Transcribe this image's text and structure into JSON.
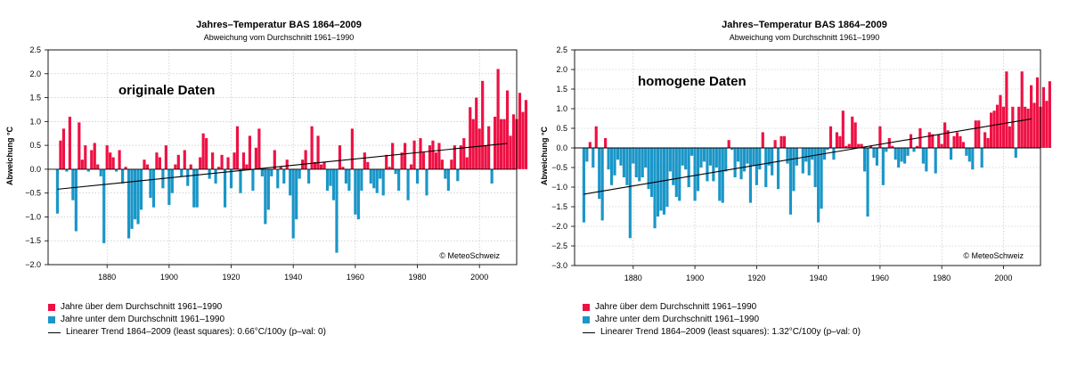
{
  "colors": {
    "above": "#ee1144",
    "below": "#1a96c8",
    "trend": "#000000",
    "grid": "#b8b8b8"
  },
  "chart_data": [
    {
      "type": "bar",
      "title": "Jahres–Temperatur BAS 1864–2009",
      "subtitle": "Abweichung vom Durchschnitt 1961–1990",
      "ylabel": "Abweichung °C",
      "xlabel": "",
      "annotation": "originale Daten",
      "credit": "© MeteoSchweiz",
      "xlim": [
        1861,
        2012
      ],
      "ylim": [
        -2.0,
        2.5
      ],
      "yticks": [
        2.5,
        2.0,
        1.5,
        1.0,
        0.5,
        0.0,
        -0.5,
        -1.0,
        -1.5,
        -2.0
      ],
      "ytick_labels": [
        "2.5",
        "2.0",
        "1.5",
        "1.0",
        "0.5",
        "0.0",
        "−0.5",
        "−1.0",
        "−1.5",
        "−2.0"
      ],
      "xticks": [
        1880,
        1900,
        1920,
        1940,
        1960,
        1980,
        2000
      ],
      "xtick_labels": [
        "1880",
        "1900",
        "1920",
        "1940",
        "1960",
        "1980",
        "2000"
      ],
      "first_year": 1864,
      "values": [
        -0.93,
        0.6,
        0.85,
        -0.05,
        1.1,
        -0.65,
        -1.3,
        0.98,
        0.2,
        0.5,
        -0.05,
        0.4,
        0.55,
        0.1,
        -0.15,
        -1.55,
        0.5,
        0.35,
        0.25,
        -0.05,
        0.4,
        -0.3,
        0.05,
        -1.45,
        -1.25,
        -1.05,
        -1.15,
        -0.85,
        0.2,
        0.1,
        -0.6,
        -0.8,
        0.35,
        0.25,
        -0.4,
        0.5,
        -0.75,
        -0.5,
        0.1,
        0.3,
        -0.15,
        0.4,
        -0.35,
        0.1,
        -0.8,
        -0.8,
        0.25,
        0.75,
        0.65,
        -0.2,
        0.35,
        -0.3,
        0.05,
        0.3,
        -0.8,
        0.25,
        -0.4,
        0.35,
        0.9,
        -0.5,
        0.35,
        0.1,
        0.7,
        -0.45,
        0.45,
        0.85,
        -0.15,
        -1.15,
        -0.85,
        -0.15,
        0.4,
        -0.4,
        0.05,
        -0.3,
        0.2,
        -0.55,
        -1.45,
        -1.05,
        -0.2,
        0.2,
        0.4,
        -0.3,
        0.9,
        0.15,
        0.7,
        0.1,
        0.15,
        -0.45,
        -0.35,
        -0.65,
        -1.75,
        0.5,
        0.05,
        -0.3,
        -0.45,
        0.85,
        -0.95,
        -1.05,
        -0.45,
        0.35,
        0.15,
        -0.3,
        -0.4,
        -0.5,
        -0.2,
        -0.55,
        0.3,
        0.05,
        0.55,
        -0.1,
        -0.45,
        0.35,
        0.55,
        -0.65,
        0.1,
        0.6,
        -0.3,
        0.65,
        0.35,
        -0.55,
        0.5,
        0.6,
        0.35,
        0.55,
        0.2,
        -0.2,
        -0.45,
        0.2,
        0.5,
        -0.25,
        0.5,
        0.65,
        0.25,
        1.3,
        1.05,
        1.5,
        0.85,
        1.85,
        0.5,
        0.9,
        -0.3,
        1.1,
        2.1,
        1.05,
        1.05,
        1.65,
        0.7,
        1.15,
        1.05,
        1.6,
        1.2,
        1.45
      ],
      "trend": {
        "x": [
          1864,
          2009
        ],
        "y": [
          -0.42,
          0.54
        ]
      },
      "legend": {
        "above": "Jahre über dem Durchschnitt 1961–1990",
        "below": "Jahre unter dem Durchschnitt 1961–1990",
        "trend": "Linearer Trend 1864–2009 (least squares): 0.66°C/100y (p–val: 0)"
      }
    },
    {
      "type": "bar",
      "title": "Jahres–Temperatur BAS 1864–2009",
      "subtitle": "Abweichung vom Durchschnitt 1961–1990",
      "ylabel": "Abweichung °C",
      "xlabel": "",
      "annotation": "homogene Daten",
      "credit": "© MeteoSchweiz",
      "xlim": [
        1861,
        2012
      ],
      "ylim": [
        -3.0,
        2.5
      ],
      "yticks": [
        2.5,
        2.0,
        1.5,
        1.0,
        0.5,
        0.0,
        -0.5,
        -1.0,
        -1.5,
        -2.0,
        -2.5,
        -3.0
      ],
      "ytick_labels": [
        "2.5",
        "2.0",
        "1.5",
        "1.0",
        "0.5",
        "0.0",
        "−0.5",
        "−1.0",
        "−1.5",
        "−2.0",
        "−2.5",
        "−3.0"
      ],
      "xticks": [
        1880,
        1900,
        1920,
        1940,
        1960,
        1980,
        2000
      ],
      "xtick_labels": [
        "1880",
        "1900",
        "1920",
        "1940",
        "1960",
        "1980",
        "2000"
      ],
      "first_year": 1864,
      "values": [
        -1.9,
        -0.35,
        0.15,
        -0.5,
        0.55,
        -1.3,
        -1.85,
        0.25,
        -0.55,
        -0.95,
        -0.7,
        -0.3,
        -0.45,
        -0.75,
        -0.95,
        -2.3,
        -0.4,
        -0.75,
        -0.85,
        -0.75,
        -0.5,
        -1.05,
        -1.25,
        -2.05,
        -1.75,
        -1.6,
        -1.7,
        -1.5,
        -0.6,
        -0.95,
        -1.25,
        -1.35,
        -0.45,
        -0.55,
        -1.0,
        -0.2,
        -1.35,
        -1.1,
        -0.5,
        -0.35,
        -0.85,
        -0.45,
        -0.85,
        -0.5,
        -1.35,
        -1.4,
        -0.6,
        0.2,
        -0.05,
        -0.75,
        -0.35,
        -0.8,
        -0.6,
        -0.4,
        -1.4,
        -0.45,
        -0.95,
        -0.55,
        0.4,
        -1.0,
        -0.45,
        -0.7,
        0.2,
        -1.05,
        0.3,
        0.3,
        -0.4,
        -1.7,
        -1.1,
        -0.45,
        0.0,
        -0.65,
        -0.35,
        -0.7,
        -0.3,
        -1.0,
        -1.9,
        -1.55,
        -0.3,
        -0.05,
        0.55,
        -0.3,
        0.4,
        0.3,
        0.95,
        0.05,
        0.1,
        0.8,
        0.65,
        0.1,
        0.1,
        -0.6,
        -1.75,
        0.05,
        -0.25,
        -0.45,
        0.55,
        -0.95,
        -0.1,
        0.25,
        0.05,
        -0.3,
        -0.5,
        -0.35,
        -0.4,
        -0.2,
        0.35,
        -0.1,
        0.05,
        0.5,
        -0.4,
        -0.6,
        0.4,
        0.35,
        -0.65,
        0.35,
        0.1,
        0.65,
        0.45,
        -0.3,
        0.3,
        0.4,
        0.3,
        0.15,
        -0.2,
        -0.35,
        -0.55,
        0.7,
        0.7,
        -0.5,
        0.4,
        0.25,
        0.9,
        0.95,
        1.1,
        1.35,
        1.05,
        1.95,
        0.55,
        1.05,
        -0.25,
        1.05,
        1.95,
        1.05,
        1.0,
        1.6,
        1.15,
        1.8,
        1.05,
        1.55,
        1.2,
        1.7
      ],
      "trend": {
        "x": [
          1864,
          2009
        ],
        "y": [
          -1.18,
          0.74
        ]
      },
      "legend": {
        "above": "Jahre über dem Durchschnitt 1961–1990",
        "below": "Jahre unter dem Durchschnitt 1961–1990",
        "trend": "Linearer Trend 1864–2009 (least squares): 1.32°C/100y (p–val: 0)"
      }
    }
  ]
}
